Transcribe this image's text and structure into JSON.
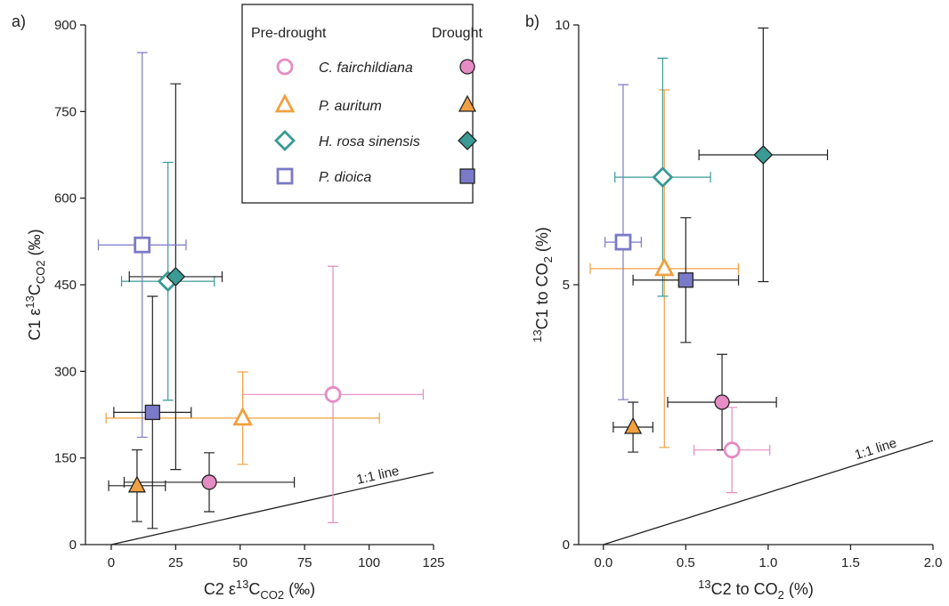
{
  "legend": {
    "headers": [
      "Pre-drought",
      "Drought"
    ],
    "species": [
      {
        "name": "C. fairchildiana",
        "color": "#e58cc4",
        "marker": "circle"
      },
      {
        "name": "P. auritum",
        "color": "#f0a040",
        "marker": "triangle"
      },
      {
        "name": "H. rosa sinensis",
        "color": "#3a9a94",
        "marker": "diamond"
      },
      {
        "name": "P. dioica",
        "color": "#7a7ac8",
        "marker": "square"
      }
    ]
  },
  "chart_data": [
    {
      "type": "scatter",
      "panel": "a)",
      "xlabel": [
        "C2 ε",
        "13",
        "C",
        "CO2",
        " (‰)"
      ],
      "ylabel": [
        "C1 ε",
        "13",
        "C",
        "CO2",
        " (‰)"
      ],
      "xlim": [
        -10,
        125
      ],
      "ylim": [
        0,
        900
      ],
      "xticks": [
        0,
        25,
        50,
        75,
        100,
        125
      ],
      "yticks": [
        0,
        150,
        300,
        450,
        600,
        750,
        900
      ],
      "reference_line": "1:1 line",
      "series": [
        {
          "pre": {
            "x": 86,
            "y": 260,
            "x_err": 35,
            "y_err": 222
          },
          "drought": {
            "x": 38,
            "y": 108,
            "x_err": 33,
            "y_err": 51
          }
        },
        {
          "pre": {
            "x": 51,
            "y": 219,
            "x_err": 53,
            "y_err": 80
          },
          "drought": {
            "x": 10,
            "y": 102,
            "x_err": 11,
            "y_err": 62
          }
        },
        {
          "pre": {
            "x": 22,
            "y": 456,
            "x_err": 18,
            "y_err": 206
          },
          "drought": {
            "x": 25,
            "y": 464,
            "x_err": 18,
            "y_err": 334
          }
        },
        {
          "pre": {
            "x": 12,
            "y": 519,
            "x_err": 17,
            "y_err": 333
          },
          "drought": {
            "x": 16,
            "y": 229,
            "x_err": 15,
            "y_err": 201
          }
        }
      ]
    },
    {
      "type": "scatter",
      "panel": "b)",
      "xlabel": [
        "13",
        "C2 to CO",
        "2",
        " (%)"
      ],
      "ylabel": [
        "13",
        "C1 to CO",
        "2",
        " (%)"
      ],
      "xlim": [
        -0.15,
        2.0
      ],
      "ylim": [
        0,
        10
      ],
      "xticks": [
        {
          "value": 0,
          "label": "0.0"
        },
        {
          "value": 0.5,
          "label": "0.5"
        },
        {
          "value": 1,
          "label": "1.0"
        },
        {
          "value": 1.5,
          "label": "1.5"
        },
        {
          "value": 2,
          "label": "2.0"
        }
      ],
      "yticks": [
        0,
        5,
        10
      ],
      "reference_line": "1:1 line",
      "series": [
        {
          "pre": {
            "x": 0.78,
            "y": 1.82,
            "x_err": 0.23,
            "y_err": 0.82
          },
          "drought": {
            "x": 0.72,
            "y": 2.74,
            "x_err": 0.33,
            "y_err": 0.92
          }
        },
        {
          "pre": {
            "x": 0.37,
            "y": 5.31,
            "x_err": 0.45,
            "y_err": 3.44
          },
          "drought": {
            "x": 0.18,
            "y": 2.26,
            "x_err": 0.12,
            "y_err": 0.48
          }
        },
        {
          "pre": {
            "x": 0.36,
            "y": 7.07,
            "x_err": 0.29,
            "y_err": 2.29
          },
          "drought": {
            "x": 0.97,
            "y": 7.5,
            "x_err": 0.39,
            "y_err": 2.44
          }
        },
        {
          "pre": {
            "x": 0.12,
            "y": 5.82,
            "x_err": 0.11,
            "y_err": 3.03
          },
          "drought": {
            "x": 0.5,
            "y": 5.09,
            "x_err": 0.32,
            "y_err": 1.2
          }
        }
      ]
    }
  ]
}
